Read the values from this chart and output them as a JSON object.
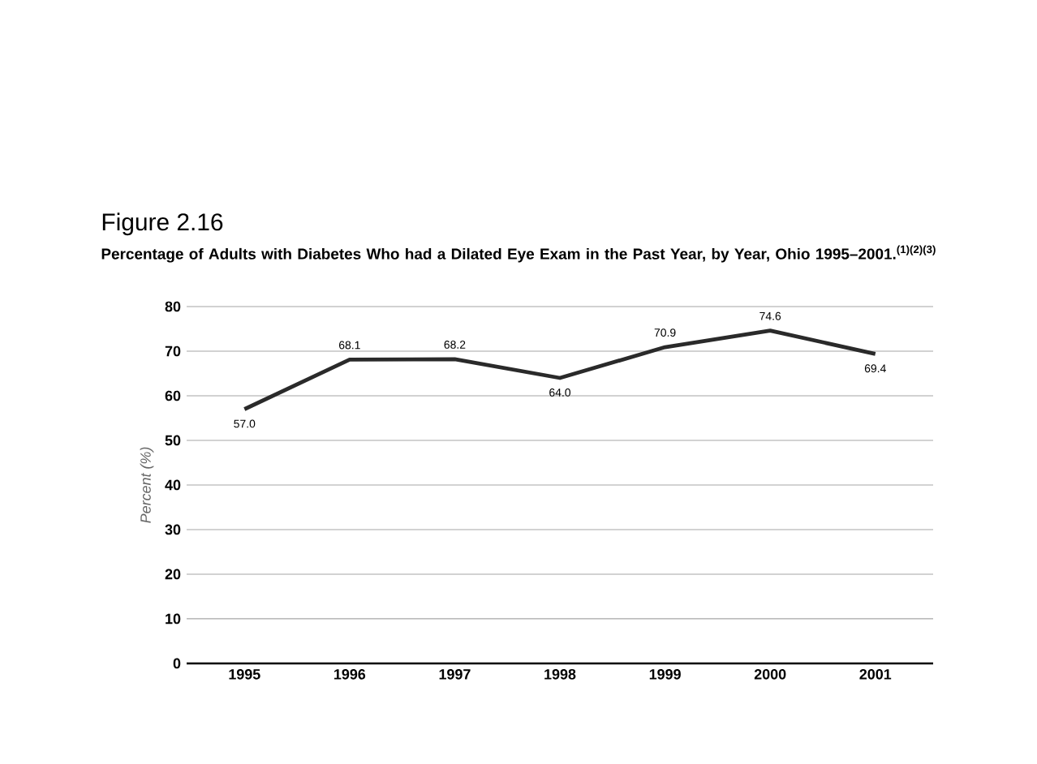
{
  "chart_data": {
    "type": "line",
    "title": "Figure 2.16",
    "subtitle": "Percentage of Adults with Diabetes Who had a Dilated Eye Exam in the Past Year, by Year, Ohio 1995–2001.$^{(1)(2)(3)}$",
    "ylabel": "Percent (%)",
    "categories": [
      "1995",
      "1996",
      "1997",
      "1998",
      "1999",
      "2000",
      "2001"
    ],
    "values": [
      57.0,
      68.1,
      68.2,
      64.0,
      70.9,
      74.6,
      69.4
    ],
    "color": "#2a2a2a",
    "ylim": [
      0,
      80
    ],
    "yticks": [
      0,
      10,
      20,
      30,
      40,
      50,
      60,
      70,
      80
    ],
    "value_labels": [
      "57.0",
      "68.1",
      "68.2",
      "64.0",
      "70.9",
      "74.6",
      "69.4"
    ],
    "grid": "y",
    "marker": "none",
    "line_style": "solid"
  }
}
